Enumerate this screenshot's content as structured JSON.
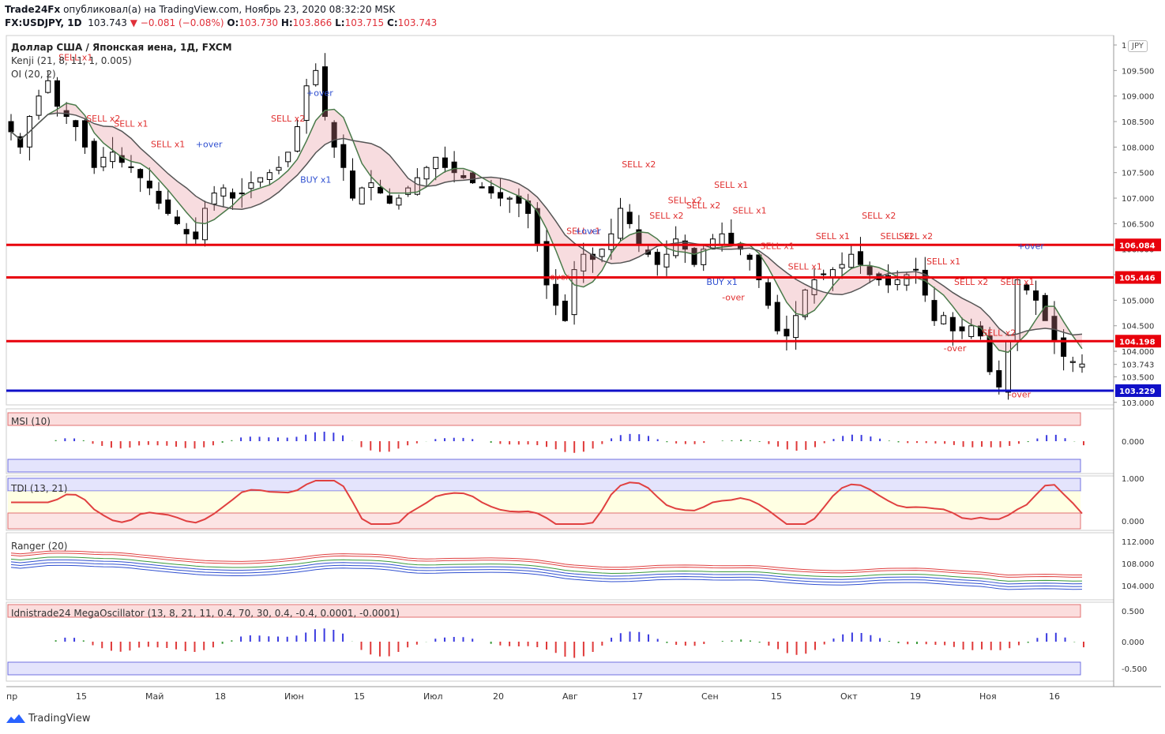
{
  "header": {
    "author": "Trade24Fx",
    "published_text": "опубликовал(а) на TradingView.com, Ноябрь 23, 2020 08:32:20 MSK",
    "symbol_line": "FX:USDJPY, 1D",
    "last_price": "103.743",
    "change": "−0.081 (−0.08%)",
    "o_label": "O:",
    "o_value": "103.730",
    "h_label": "H:",
    "h_value": "103.866",
    "l_label": "L:",
    "l_value": "103.715",
    "c_label": "C:",
    "c_value": "103.743"
  },
  "legend": {
    "title": "Доллар США / Японская иена, 1Д, FXCM",
    "indicator1": "Kenji (21, 8, 11, 1, 0.005)",
    "indicator2": "OI (20, 2)",
    "msi": "MSI (10)",
    "tdi": "TDI (13, 21)",
    "ranger": "Ranger (20)",
    "mega": "Idnistrade24 MegaOscillator (13, 8, 21, 11, 0.4, 70, 30, 0.4, -0.4, 0.0001, -0.0001)"
  },
  "currency_badge": "JPY",
  "footer": {
    "brand": "TradingView"
  },
  "colors": {
    "red_level": "#e8000b",
    "blue_level": "#1010c8",
    "bull": "#ffffff",
    "bear": "#000000"
  },
  "chart_data": {
    "type": "candlestick",
    "main_axis": {
      "ylim": [
        102.95,
        110.0
      ],
      "ticks": [
        "1",
        "109.500",
        "109.000",
        "108.500",
        "108.000",
        "107.500",
        "107.000",
        "106.500",
        "106.000",
        "105.500",
        "105.000",
        "104.500",
        "104.000",
        "103.500",
        "103.000"
      ],
      "tick_values": [
        110.0,
        109.5,
        109.0,
        108.5,
        108.0,
        107.5,
        107.0,
        106.5,
        106.0,
        105.5,
        105.0,
        104.5,
        104.0,
        103.5,
        103.0
      ]
    },
    "levels": [
      {
        "value": 106.084,
        "label": "106.084",
        "color": "red"
      },
      {
        "value": 105.446,
        "label": "105.446",
        "color": "red"
      },
      {
        "value": 104.198,
        "label": "104.198",
        "color": "red"
      },
      {
        "value": 103.229,
        "label": "103.229",
        "color": "blue"
      }
    ],
    "last_price_label": "103.743",
    "x_labels": [
      "пр",
      "15",
      "Май",
      "18",
      "Июн",
      "15",
      "Июл",
      "20",
      "Авг",
      "17",
      "Сен",
      "15",
      "Окт",
      "19",
      "Ноя",
      "16"
    ],
    "close_path": [
      108.3,
      108.0,
      108.6,
      109.0,
      109.3,
      108.8,
      108.6,
      108.4,
      108.0,
      107.6,
      107.8,
      107.9,
      107.7,
      107.6,
      107.4,
      107.2,
      106.9,
      106.7,
      106.5,
      106.3,
      106.2,
      106.8,
      107.1,
      107.2,
      107.0,
      107.1,
      107.3,
      107.4,
      107.5,
      107.6,
      107.9,
      108.4,
      109.2,
      109.5,
      108.6,
      108.0,
      107.6,
      107.0,
      107.2,
      107.3,
      107.1,
      106.9,
      107.0,
      107.2,
      107.4,
      107.6,
      107.8,
      107.6,
      107.5,
      107.4,
      107.3,
      107.2,
      107.1,
      107.0,
      107.0,
      106.9,
      106.7,
      106.1,
      105.3,
      104.9,
      104.6,
      105.6,
      105.9,
      105.8,
      106.0,
      106.3,
      106.8,
      106.5,
      106.1,
      105.9,
      105.7,
      105.9,
      106.2,
      106.0,
      105.7,
      106.0,
      106.2,
      106.3,
      106.1,
      106.0,
      105.8,
      105.4,
      104.9,
      104.4,
      104.3,
      104.7,
      105.2,
      105.4,
      105.5,
      105.6,
      105.7,
      105.9,
      105.7,
      105.5,
      105.4,
      105.3,
      105.4,
      105.5,
      105.6,
      105.1,
      104.6,
      104.7,
      104.4,
      104.4,
      104.5,
      104.3,
      103.6,
      103.3,
      104.2,
      105.4,
      105.2,
      105.0,
      104.6,
      104.2,
      103.9,
      103.8,
      103.75
    ],
    "sell_labels": [
      "SELL x1",
      "SELL x2",
      "SELL x1",
      "SELL x1",
      "SELL x2",
      "SELL x1",
      "SELL x2",
      "SELL x2",
      "SELL x2",
      "SELL x2",
      "SELL x1",
      "SELL x1",
      "SELL x1",
      "SELL x1",
      "SELL x1",
      "SELL x2",
      "SELL x2",
      "SELL x2",
      "SELL x1",
      "SELL x2",
      "SELL x2",
      "SELL x1"
    ],
    "buy_labels": [
      "BUY x1",
      "BUY x1"
    ],
    "over_labels": [
      "+over",
      "+over",
      "-over",
      "+over",
      "-over",
      "-over",
      "+over",
      "-over"
    ],
    "subpanels": [
      {
        "name": "MSI (10)",
        "ticks": [
          "0.000"
        ]
      },
      {
        "name": "TDI (13, 21)",
        "ticks": [
          "1.000",
          "0.000"
        ]
      },
      {
        "name": "Ranger (20)",
        "ticks": [
          "112.000",
          "108.000",
          "104.000"
        ]
      },
      {
        "name": "MegaOscillator",
        "ticks": [
          "0.500",
          "0.000",
          "-0.500"
        ]
      }
    ]
  }
}
